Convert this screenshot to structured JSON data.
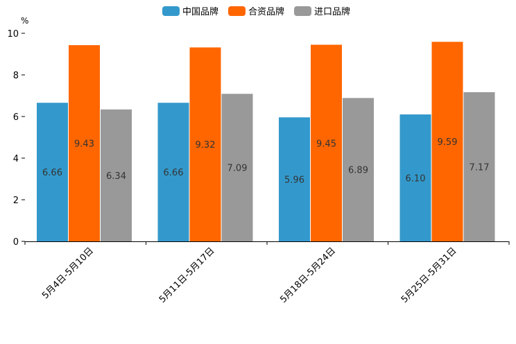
{
  "chart_data": {
    "type": "bar",
    "title": "",
    "unit_label": "%",
    "xlabel": "",
    "ylabel": "",
    "ylim": [
      0,
      10
    ],
    "yticks": [
      0,
      2,
      4,
      6,
      8,
      10
    ],
    "grid": false,
    "legend_position": "top-center",
    "categories": [
      "5月4日-5月10日",
      "5月11日-5月17日",
      "5月18日-5月24日",
      "5月25日-5月31日"
    ],
    "series": [
      {
        "name": "中国品牌",
        "color": "#3399cc",
        "values": [
          6.66,
          6.66,
          5.96,
          6.1
        ]
      },
      {
        "name": "合资品牌",
        "color": "#ff6600",
        "values": [
          9.43,
          9.32,
          9.45,
          9.59
        ]
      },
      {
        "name": "进口品牌",
        "color": "#999999",
        "values": [
          6.34,
          7.09,
          6.89,
          7.17
        ]
      }
    ]
  }
}
